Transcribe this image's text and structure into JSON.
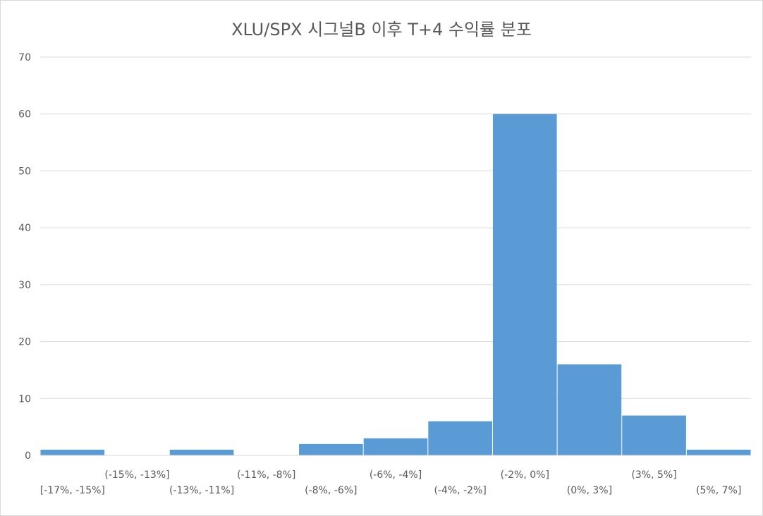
{
  "chart_data": {
    "type": "bar",
    "title": "XLU/SPX 시그널B 이후 T+4 수익률 분포",
    "categories": [
      "[-17%, -15%]",
      "(-15%, -13%]",
      "(-13%, -11%]",
      "(-11%, -8%]",
      "(-8%, -6%]",
      "(-6%, -4%]",
      "(-4%, -2%]",
      "(-2%, 0%]",
      "(0%, 3%]",
      "(3%, 5%]",
      "(5%, 7%]"
    ],
    "values": [
      1,
      0,
      1,
      0,
      2,
      3,
      6,
      60,
      16,
      7,
      1
    ],
    "ylim": [
      0,
      70
    ],
    "yticks": [
      0,
      10,
      20,
      30,
      40,
      50,
      60,
      70
    ],
    "grid": true,
    "bar_color": "#5b9bd5",
    "xlabel": "",
    "ylabel": ""
  }
}
